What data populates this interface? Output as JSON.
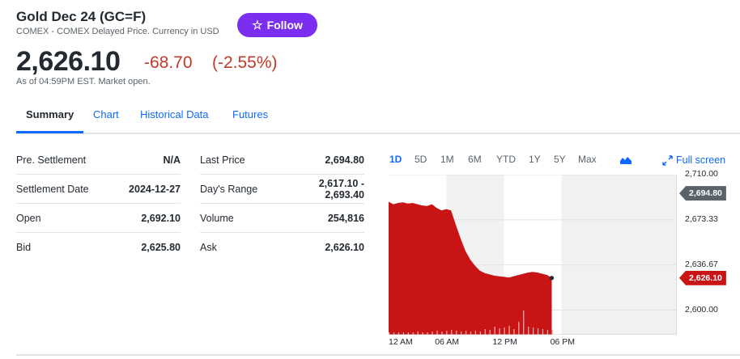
{
  "header": {
    "title": "Gold Dec 24 (GC=F)",
    "subtitle": "COMEX - COMEX Delayed Price. Currency in USD",
    "follow_label": "Follow",
    "price": "2,626.10",
    "change": "-68.70",
    "change_pct": "(-2.55%)",
    "as_of": "As of 04:59PM EST. Market open."
  },
  "tabs": [
    "Summary",
    "Chart",
    "Historical Data",
    "Futures"
  ],
  "stats_left": [
    {
      "label": "Pre. Settlement",
      "value": "N/A"
    },
    {
      "label": "Settlement Date",
      "value": "2024-12-27"
    },
    {
      "label": "Open",
      "value": "2,692.10"
    },
    {
      "label": "Bid",
      "value": "2,625.80"
    }
  ],
  "stats_right": [
    {
      "label": "Last Price",
      "value": "2,694.80"
    },
    {
      "label": "Day's Range",
      "value_line1": "2,617.10 -",
      "value_line2": "2,693.40"
    },
    {
      "label": "Volume",
      "value": "254,816"
    },
    {
      "label": "Ask",
      "value": "2,626.10"
    }
  ],
  "chart_controls": {
    "ranges": [
      "1D",
      "5D",
      "1M",
      "6M",
      "YTD",
      "1Y",
      "5Y",
      "Max"
    ],
    "active_range": "1D",
    "chart_type_icon": "mountain-chart-icon",
    "fullscreen_label": "Full screen",
    "fullscreen_icon": "expand-arrows-icon"
  },
  "chart_data": {
    "type": "area",
    "y_ticks": [
      "2,710.00",
      "2,673.33",
      "2,636.67",
      "2,600.00"
    ],
    "y_tick_values": [
      2710.0,
      2673.33,
      2636.67,
      2600.0
    ],
    "ylim": [
      2580.0,
      2710.0
    ],
    "x_ticks": [
      "12 AM",
      "06 AM",
      "12 PM",
      "06 PM"
    ],
    "prev_close_badge": "2,694.80",
    "last_price_badge": "2,626.10",
    "series": [
      {
        "name": "",
        "color": "#c81414",
        "x_hours": [
          0,
          0.5,
          1,
          1.5,
          2,
          2.5,
          3,
          3.5,
          4,
          4.5,
          5,
          5.5,
          6,
          6.5,
          7,
          7.5,
          8,
          8.5,
          9,
          9.5,
          10,
          10.5,
          11,
          11.5,
          12,
          12.5,
          13,
          13.5,
          14,
          14.5,
          15,
          15.5,
          16,
          16.5,
          16.98
        ],
        "values": [
          2688,
          2686,
          2687,
          2687.5,
          2686.5,
          2687,
          2686,
          2685,
          2684.5,
          2686,
          2683,
          2681,
          2682,
          2681,
          2669,
          2658,
          2648,
          2641,
          2636,
          2632,
          2630,
          2629,
          2628,
          2627.5,
          2627,
          2626.5,
          2627.5,
          2628.5,
          2629.5,
          2630.5,
          2631,
          2630.5,
          2629.5,
          2628.5,
          2626.1
        ]
      }
    ],
    "volume_bars": [
      1,
      1,
      1,
      1,
      1,
      1,
      2,
      1,
      1,
      2,
      3,
      2,
      3,
      4,
      3,
      2,
      3,
      2,
      3,
      2,
      5,
      4,
      8,
      6,
      7,
      9,
      5,
      14,
      28,
      8,
      7,
      6,
      5,
      4,
      4
    ],
    "colors": {
      "area": "#c81414",
      "prev_close": "#5b636a",
      "last": "#c81414",
      "closed_session": "#f1f1f1"
    }
  }
}
